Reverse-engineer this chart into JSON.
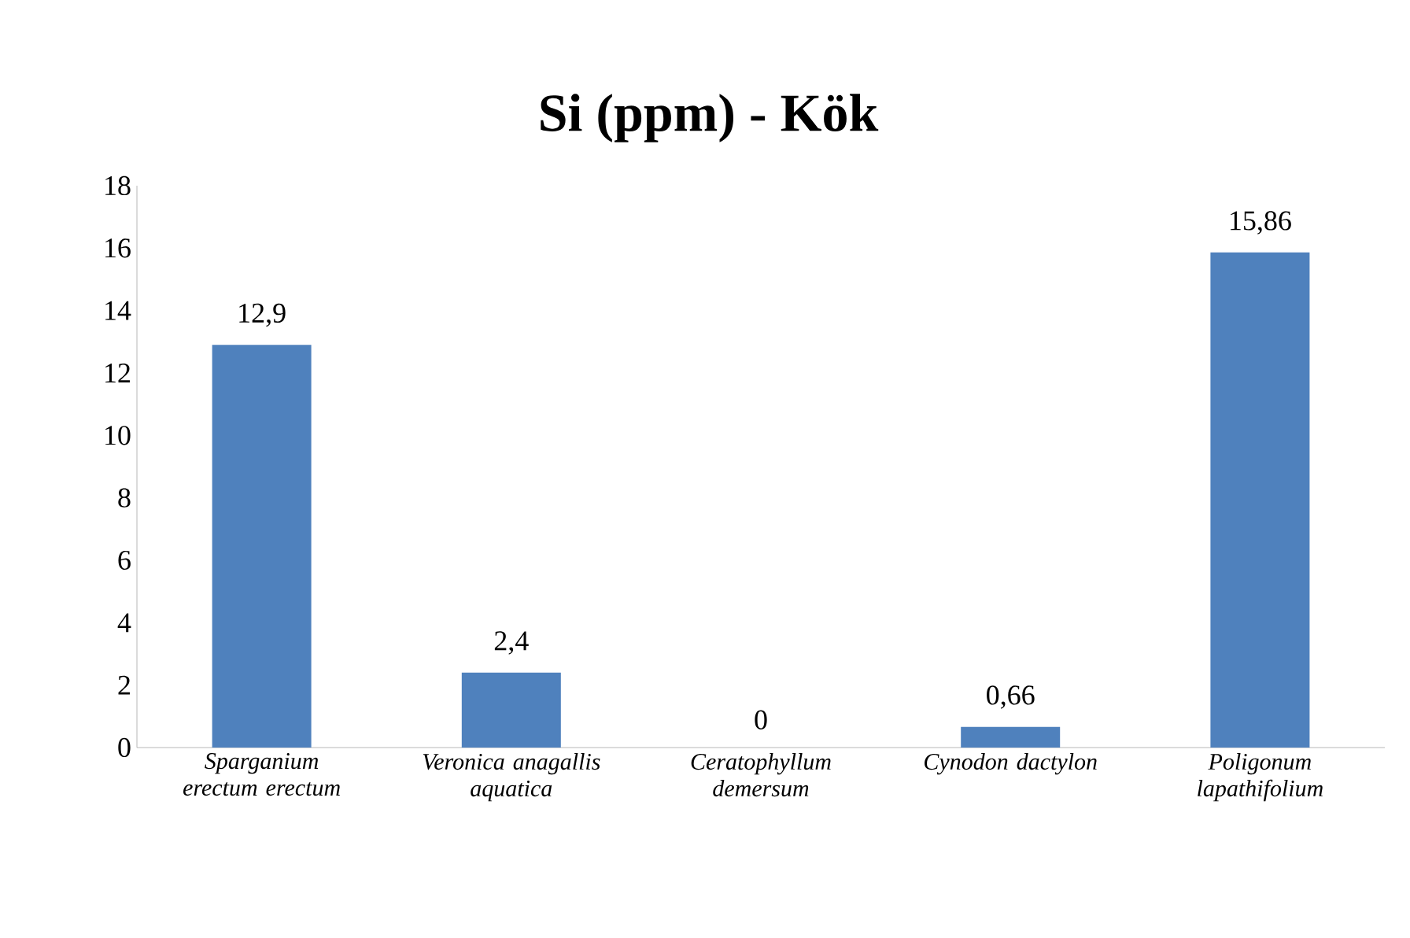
{
  "chart_data": {
    "type": "bar",
    "title": "Si (ppm) - Kök",
    "categories": [
      "Sparganium erectum erectum",
      "Veronica anagallis aquatica",
      "Ceratophyllum demersum",
      "Cynodon dactylon",
      "Poligonum lapathifolium"
    ],
    "values": [
      12.9,
      2.4,
      0,
      0.66,
      15.86
    ],
    "value_labels": [
      "12,9",
      "2,4",
      "0",
      "0,66",
      "15,86"
    ],
    "color": "#4f81bd",
    "ylim": [
      0,
      18
    ],
    "yticks": [
      0,
      2,
      4,
      6,
      8,
      10,
      12,
      14,
      16,
      18
    ],
    "grid": false
  }
}
